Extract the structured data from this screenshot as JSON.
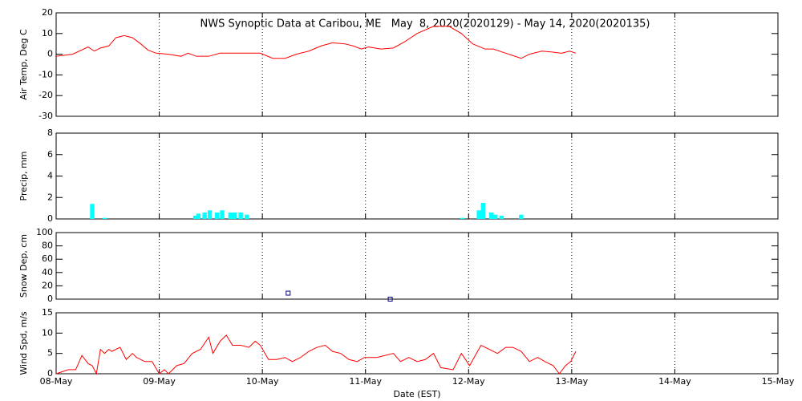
{
  "chart_data": [
    {
      "type": "line",
      "title": "NWS Synoptic Data at Caribou, ME   May  8, 2020(2020129) - May 14, 2020(2020135)",
      "ylabel": "Air Temp, Deg C",
      "color": "#ff0000",
      "grid": "x",
      "xlim": [
        0,
        7
      ],
      "xticks": [
        0,
        1,
        2,
        3,
        4,
        5,
        6,
        7
      ],
      "ylim": [
        -30,
        20
      ],
      "yticks": [
        -30,
        -20,
        -10,
        0,
        10,
        20
      ],
      "x": [
        0,
        0.16,
        0.31,
        0.37,
        0.43,
        0.51,
        0.58,
        0.66,
        0.74,
        0.82,
        0.89,
        0.97,
        1.09,
        1.21,
        1.28,
        1.36,
        1.48,
        1.59,
        1.79,
        1.98,
        2.1,
        2.22,
        2.33,
        2.45,
        2.57,
        2.68,
        2.8,
        2.88,
        2.96,
        3.03,
        3.15,
        3.27,
        3.38,
        3.5,
        3.66,
        3.81,
        3.93,
        4.04,
        4.16,
        4.24,
        4.36,
        4.51,
        4.59,
        4.71,
        4.82,
        4.9,
        4.98,
        5.04
      ],
      "values": [
        -1,
        0,
        3.5,
        1.5,
        3,
        4,
        8,
        9,
        8,
        5,
        2,
        0.5,
        0,
        -1,
        0.5,
        -1,
        -1,
        0.5,
        0.5,
        0.5,
        -2,
        -2,
        0,
        1.5,
        4,
        5.5,
        5,
        4,
        2.5,
        3.5,
        2.5,
        3,
        6,
        10,
        13.5,
        13.5,
        10,
        5,
        2.5,
        2.5,
        0.5,
        -2,
        0,
        1.5,
        1,
        0.5,
        1.5,
        0.5
      ]
    },
    {
      "type": "bar",
      "ylabel": "Precip, mm",
      "color": "#00ffff",
      "grid": "x",
      "xlim": [
        0,
        7
      ],
      "xticks": [
        0,
        1,
        2,
        3,
        4,
        5,
        6,
        7
      ],
      "ylim": [
        0,
        8
      ],
      "yticks": [
        0,
        2,
        4,
        6,
        8
      ],
      "x": [
        0.35,
        0.47,
        1.35,
        1.38,
        1.44,
        1.49,
        1.56,
        1.61,
        1.69,
        1.73,
        1.79,
        1.85,
        3.94,
        4.1,
        4.14,
        4.22,
        4.26,
        4.32,
        4.51
      ],
      "values": [
        1.4,
        0.1,
        0.3,
        0.5,
        0.6,
        0.8,
        0.6,
        0.8,
        0.6,
        0.6,
        0.6,
        0.4,
        0.1,
        0.8,
        1.5,
        0.6,
        0.4,
        0.3,
        0.4
      ]
    },
    {
      "type": "scatter",
      "ylabel": "Snow Dep, cm",
      "color": "#000080",
      "grid": "x",
      "xlim": [
        0,
        7
      ],
      "xticks": [
        0,
        1,
        2,
        3,
        4,
        5,
        6,
        7
      ],
      "ylim": [
        0,
        100
      ],
      "yticks": [
        0,
        20,
        40,
        60,
        80,
        100
      ],
      "x": [
        2.25,
        3.24
      ],
      "values": [
        9,
        0
      ]
    },
    {
      "type": "line",
      "ylabel": "Wind Spd, m/s",
      "xlabel": "Date (EST)",
      "color": "#ff0000",
      "grid": "x",
      "xlim": [
        0,
        7
      ],
      "xticks": [
        {
          "value": 0,
          "label": "08-May"
        },
        {
          "value": 1,
          "label": "09-May"
        },
        {
          "value": 2,
          "label": "10-May"
        },
        {
          "value": 3,
          "label": "11-May"
        },
        {
          "value": 4,
          "label": "12-May"
        },
        {
          "value": 5,
          "label": "13-May"
        },
        {
          "value": 6,
          "label": "14-May"
        },
        {
          "value": 7,
          "label": "15-May"
        }
      ],
      "ylim": [
        0,
        15
      ],
      "yticks": [
        0,
        5,
        10,
        15
      ],
      "x": [
        0,
        0.12,
        0.19,
        0.25,
        0.31,
        0.35,
        0.39,
        0.43,
        0.47,
        0.51,
        0.54,
        0.62,
        0.68,
        0.74,
        0.78,
        0.86,
        0.93,
        1.0,
        1.05,
        1.09,
        1.17,
        1.24,
        1.32,
        1.4,
        1.48,
        1.52,
        1.59,
        1.65,
        1.71,
        1.79,
        1.87,
        1.93,
        1.98,
        2.06,
        2.14,
        2.22,
        2.29,
        2.37,
        2.45,
        2.53,
        2.61,
        2.68,
        2.76,
        2.84,
        2.92,
        2.99,
        3.11,
        3.27,
        3.34,
        3.42,
        3.5,
        3.58,
        3.66,
        3.73,
        3.85,
        3.93,
        4.01,
        4.12,
        4.2,
        4.28,
        4.36,
        4.43,
        4.51,
        4.59,
        4.67,
        4.74,
        4.82,
        4.88,
        4.94,
        4.99,
        5.04
      ],
      "values": [
        0,
        1,
        1,
        4.5,
        2.5,
        2,
        0,
        6,
        5,
        6,
        5.5,
        6.5,
        3.5,
        5,
        4,
        3,
        3,
        0,
        1,
        0,
        2,
        2.5,
        5,
        6,
        9,
        5,
        8,
        9.5,
        7,
        7,
        6.5,
        8,
        7,
        3.5,
        3.5,
        4,
        3,
        4,
        5.5,
        6.5,
        7,
        5.5,
        5,
        3.5,
        3,
        4,
        4,
        5,
        3,
        4,
        3,
        3.5,
        5,
        1.5,
        1,
        5,
        2,
        7,
        6,
        5,
        6.5,
        6.5,
        5.5,
        3,
        4,
        3,
        2,
        0,
        2,
        3,
        5.5
      ]
    }
  ]
}
